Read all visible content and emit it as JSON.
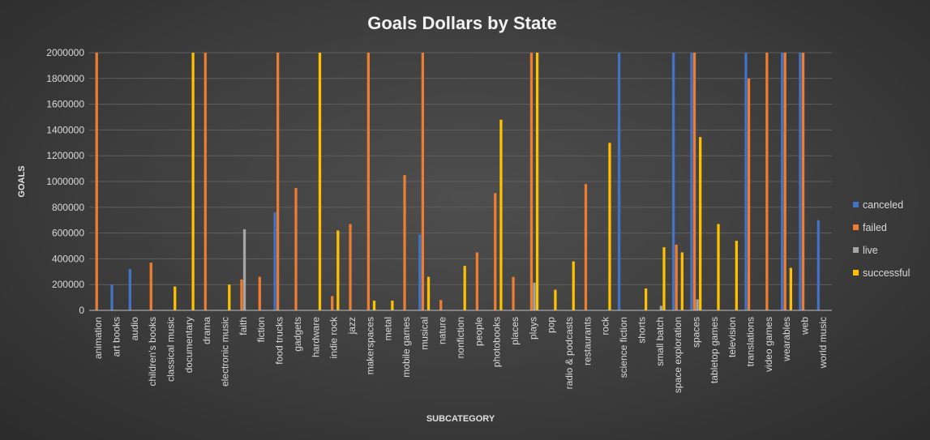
{
  "chart_data": {
    "type": "bar",
    "title": "Goals Dollars by State",
    "xlabel": "SUBCATEGORY",
    "ylabel": "GOALS",
    "ylim": [
      0,
      2000000
    ],
    "yticks": [
      "0",
      "200000",
      "400000",
      "600000",
      "800000",
      "1000000",
      "1200000",
      "1400000",
      "1600000",
      "1800000",
      "2000000"
    ],
    "grid": true,
    "legend_position": "right",
    "categories": [
      "animation",
      "art books",
      "audio",
      "children's books",
      "classical music",
      "documentary",
      "drama",
      "electronic music",
      "faith",
      "fiction",
      "food trucks",
      "gadgets",
      "hardware",
      "indie rock",
      "jazz",
      "makerspaces",
      "metal",
      "mobile games",
      "musical",
      "nature",
      "nonfiction",
      "people",
      "photobooks",
      "places",
      "plays",
      "pop",
      "radio & podcasts",
      "restaurants",
      "rock",
      "science fiction",
      "shorts",
      "small batch",
      "space exploration",
      "spaces",
      "tabletop games",
      "television",
      "translations",
      "video games",
      "wearables",
      "web",
      "world music"
    ],
    "series": [
      {
        "name": "canceled",
        "color": "#4472C4",
        "values": [
          0,
          200000,
          320000,
          0,
          0,
          0,
          0,
          0,
          0,
          0,
          760000,
          0,
          0,
          0,
          0,
          0,
          0,
          0,
          590000,
          0,
          0,
          0,
          0,
          0,
          0,
          0,
          0,
          0,
          0,
          2000000,
          0,
          0,
          2000000,
          2000000,
          0,
          0,
          2000000,
          0,
          2000000,
          2000000,
          700000
        ]
      },
      {
        "name": "failed",
        "color": "#ED7D31",
        "values": [
          2000000,
          0,
          0,
          370000,
          0,
          0,
          2000000,
          0,
          240000,
          260000,
          2000000,
          950000,
          0,
          110000,
          670000,
          2000000,
          0,
          1050000,
          2000000,
          80000,
          0,
          450000,
          910000,
          260000,
          2000000,
          0,
          0,
          980000,
          0,
          0,
          0,
          0,
          510000,
          2000000,
          0,
          0,
          1800000,
          2000000,
          2000000,
          2000000,
          0
        ]
      },
      {
        "name": "live",
        "color": "#A5A5A5",
        "values": [
          0,
          0,
          0,
          0,
          0,
          0,
          0,
          0,
          630000,
          0,
          0,
          0,
          0,
          0,
          0,
          0,
          0,
          0,
          0,
          0,
          0,
          0,
          0,
          0,
          215000,
          0,
          0,
          0,
          0,
          0,
          0,
          35000,
          0,
          85000,
          0,
          0,
          0,
          0,
          0,
          0,
          0
        ]
      },
      {
        "name": "successful",
        "color": "#FFC000",
        "values": [
          0,
          0,
          0,
          0,
          185000,
          2000000,
          0,
          200000,
          0,
          0,
          0,
          0,
          2000000,
          620000,
          0,
          75000,
          75000,
          0,
          260000,
          0,
          345000,
          0,
          1480000,
          0,
          2000000,
          160000,
          380000,
          0,
          1300000,
          0,
          170000,
          490000,
          450000,
          1345000,
          670000,
          540000,
          0,
          0,
          330000,
          0,
          0
        ]
      }
    ]
  }
}
